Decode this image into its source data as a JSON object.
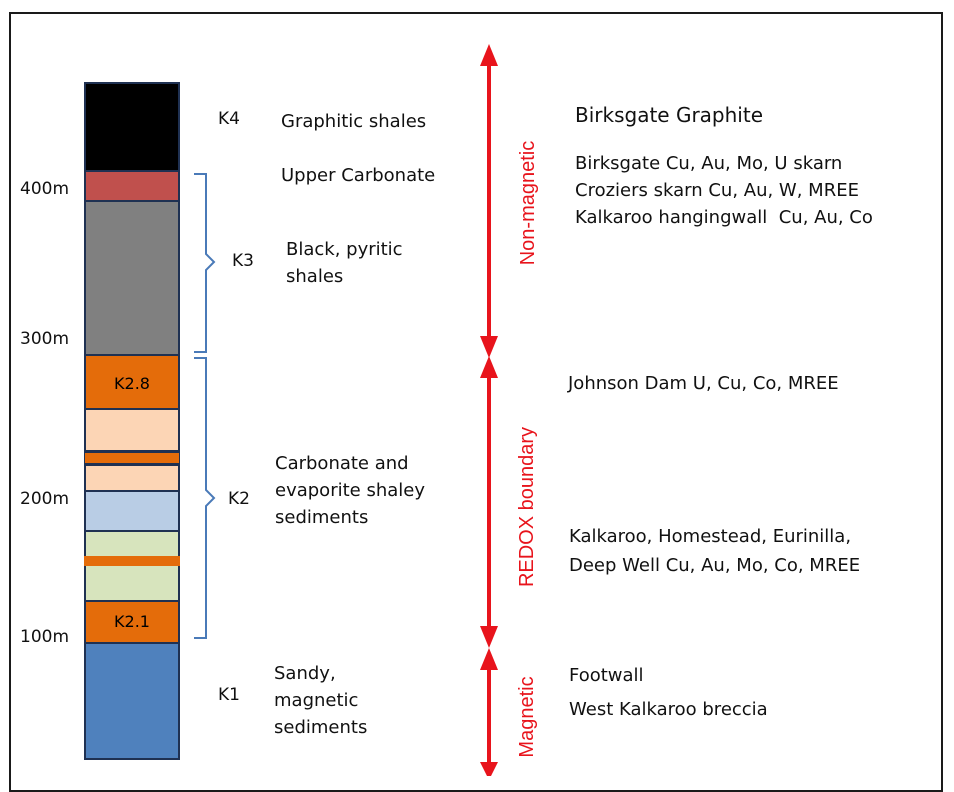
{
  "column": {
    "layers": [
      {
        "name": "K4-graphitic-shale",
        "color": "#000000",
        "label": ""
      },
      {
        "name": "upper-carbonate",
        "color": "#c0504d",
        "label": ""
      },
      {
        "name": "k3-black-shale",
        "color": "#808080",
        "label": ""
      },
      {
        "name": "k2-8",
        "color": "#e46c0a",
        "label": "K2.8"
      },
      {
        "name": "peach-a",
        "color": "#fcd5b5",
        "label": ""
      },
      {
        "name": "orange-thin",
        "color": "#e46c0a",
        "label": ""
      },
      {
        "name": "peach-b",
        "color": "#fcd5b5",
        "label": ""
      },
      {
        "name": "light-blue",
        "color": "#b9cde5",
        "label": ""
      },
      {
        "name": "light-green",
        "color": "#d7e4bd",
        "label": ""
      },
      {
        "name": "orange-band",
        "color": "#e46c0a",
        "label": ""
      },
      {
        "name": "k2-1",
        "color": "#e46c0a",
        "label": "K2.1"
      },
      {
        "name": "k1-magnetic",
        "color": "#4f81bd",
        "label": ""
      }
    ]
  },
  "depths": [
    "400m",
    "300m",
    "200m",
    "100m"
  ],
  "units": [
    "K4",
    "K3",
    "K2",
    "K1"
  ],
  "lithology": {
    "k4": "Graphitic shales",
    "upper_carbonate": "Upper Carbonate",
    "k3": "Black, pyritic\nshales",
    "k2": "Carbonate and\nevaporite shaley\nsediments",
    "k1": "Sandy,\nmagnetic\nsediments"
  },
  "zones": {
    "non_magnetic": "Non-magnetic",
    "redox": "REDOX boundary",
    "magnetic": "Magnetic"
  },
  "deposits": {
    "birksgate_graphite": "Birksgate Graphite",
    "skarns": "Birksgate Cu, Au, Mo, U skarn\nCroziers skarn Cu, Au, W, MREE\nKalkaroo hangingwall  Cu, Au, Co",
    "johnson_dam": "Johnson Dam U, Cu, Co, MREE",
    "kalkaroo": "Kalkaroo, Homestead, Eurinilla,\nDeep Well Cu, Au, Mo, Co, MREE",
    "footwall": "Footwall",
    "west_kalkaroo": "West Kalkaroo breccia"
  },
  "colors": {
    "arrow": "#e8141c",
    "bracket": "#4a7ab8",
    "layer_border": "#1f3152"
  }
}
